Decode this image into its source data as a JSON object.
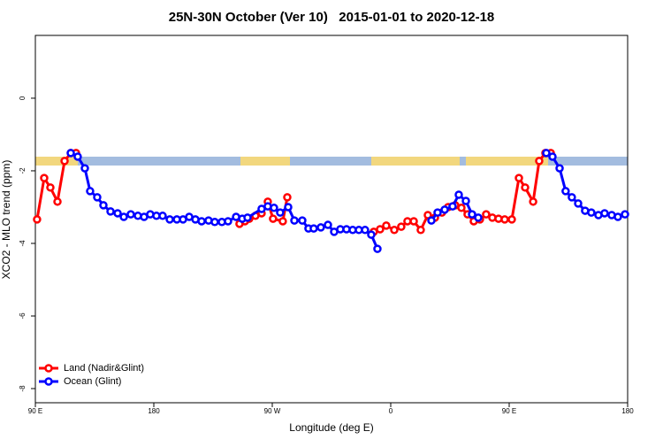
{
  "chart_data": {
    "type": "line",
    "title": "25N-30N October (Ver 10)   2015-01-01 to 2020-12-18",
    "xlabel": "Longitude (deg E)",
    "ylabel": "XCO2 - MLO trend (ppm)",
    "xlim": [
      90,
      540
    ],
    "ylim": [
      -8.39,
      1.73
    ],
    "xticks": [
      {
        "value": 90,
        "label": "90 E"
      },
      180,
      {
        "value": 270,
        "label": "90 W"
      },
      {
        "value": 360,
        "label": "0"
      },
      {
        "value": 450,
        "label": "90 E"
      },
      {
        "value": 540,
        "label": "180"
      }
    ],
    "yticks": [
      0,
      -2,
      -4,
      -6,
      -8
    ],
    "legend": "bottom-left",
    "series": [
      {
        "name": "Land (Nadir&Glint)",
        "color": "#ff0000",
        "x": [
          91.3,
          96.7,
          101.4,
          106.8,
          112.2,
          116.9,
          120.9,
          null,
          245.1,
          249.2,
          252.5,
          257.2,
          261.9,
          266.6,
          270.6,
          278.0,
          281.4,
          null,
          347.1,
          351.9,
          356.6,
          362.7,
          368.0,
          372.7,
          377.5,
          382.8,
          388.2,
          393.6,
          398.9,
          403.6,
          409.0,
          413.7,
          418.4,
          423.1,
          427.8,
          432.5,
          437.2,
          441.9,
          446.6,
          452.0,
          457.4,
          462.1,
          468.2,
          472.8,
          477.5,
          481.6
        ],
        "values": [
          -3.34,
          -2.2,
          -2.46,
          -2.85,
          -1.73,
          -1.51,
          -1.51,
          null,
          -3.46,
          -3.39,
          -3.32,
          -3.24,
          -3.17,
          -2.85,
          -3.32,
          -3.39,
          -2.73,
          null,
          -3.68,
          -3.61,
          -3.51,
          -3.63,
          -3.54,
          -3.39,
          -3.39,
          -3.63,
          -3.22,
          -3.29,
          -3.15,
          -3.0,
          -2.95,
          -3.02,
          -3.2,
          -3.39,
          -3.34,
          -3.2,
          -3.29,
          -3.32,
          -3.34,
          -3.34,
          -2.2,
          -2.46,
          -2.85,
          -1.73,
          -1.51,
          -1.51
        ]
      },
      {
        "name": "Ocean (Glint)",
        "color": "#0000ff",
        "x": [
          116.9,
          122.2,
          127.6,
          131.6,
          137.0,
          141.7,
          147.1,
          152.5,
          157.2,
          162.5,
          167.9,
          172.6,
          177.3,
          182.0,
          186.7,
          192.1,
          197.5,
          202.2,
          206.9,
          211.6,
          216.3,
          221.6,
          226.3,
          231.7,
          236.4,
          242.5,
          247.2,
          251.2,
          261.9,
          266.6,
          271.3,
          276.0,
          282.1,
          286.8,
          292.8,
          297.5,
          301.5,
          306.9,
          312.3,
          317.0,
          321.7,
          326.4,
          331.1,
          335.8,
          340.5,
          345.2,
          349.9,
          null,
          390.9,
          395.6,
          401.0,
          407.0,
          411.7,
          417.1,
          421.8,
          426.5,
          null,
          478.2,
          482.9,
          488.3,
          492.9,
          497.6,
          502.4,
          507.7,
          512.4,
          517.8,
          522.5,
          527.9,
          532.6,
          538.0
        ],
        "values": [
          -1.51,
          -1.61,
          -1.93,
          -2.56,
          -2.73,
          -2.95,
          -3.12,
          -3.17,
          -3.27,
          -3.2,
          -3.24,
          -3.27,
          -3.2,
          -3.24,
          -3.24,
          -3.34,
          -3.34,
          -3.34,
          -3.27,
          -3.34,
          -3.39,
          -3.37,
          -3.41,
          -3.41,
          -3.39,
          -3.27,
          -3.32,
          -3.29,
          -3.05,
          -2.98,
          -3.02,
          -3.15,
          -3.0,
          -3.37,
          -3.37,
          -3.59,
          -3.59,
          -3.56,
          -3.49,
          -3.68,
          -3.61,
          -3.61,
          -3.63,
          -3.63,
          -3.63,
          -3.76,
          -4.15,
          null,
          -3.37,
          -3.15,
          -3.07,
          -2.98,
          -2.66,
          -2.83,
          -3.2,
          -3.29,
          null,
          -1.51,
          -1.61,
          -1.93,
          -2.56,
          -2.73,
          -2.9,
          -3.1,
          -3.15,
          -3.22,
          -3.17,
          -3.22,
          -3.27,
          -3.2
        ]
      }
    ]
  }
}
